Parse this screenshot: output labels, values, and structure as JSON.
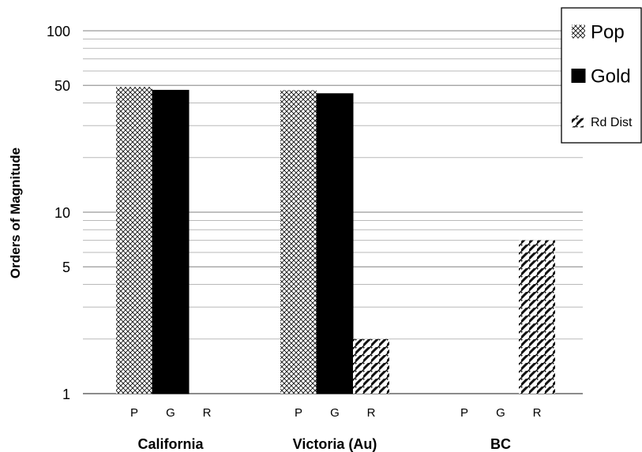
{
  "chart_data": {
    "type": "bar",
    "ylabel": "Orders of Magnitude",
    "y_scale": "log",
    "ylim": [
      1,
      100
    ],
    "y_ticks": [
      1,
      5,
      10,
      50,
      100
    ],
    "grid": true,
    "legend_position": "top-right",
    "categories": [
      "California",
      "Victoria (Au)",
      "BC"
    ],
    "bar_labels": [
      "P",
      "G",
      "R"
    ],
    "series": [
      {
        "name": "Pop",
        "pattern": "crosshatch",
        "color": "#000000",
        "values": [
          49,
          47,
          null
        ]
      },
      {
        "name": "Gold",
        "pattern": "solid",
        "color": "#000000",
        "values": [
          47,
          45,
          null
        ]
      },
      {
        "name": "Rd Dist",
        "pattern": "diagonal",
        "color": "#000000",
        "values": [
          null,
          2,
          7
        ]
      }
    ]
  }
}
